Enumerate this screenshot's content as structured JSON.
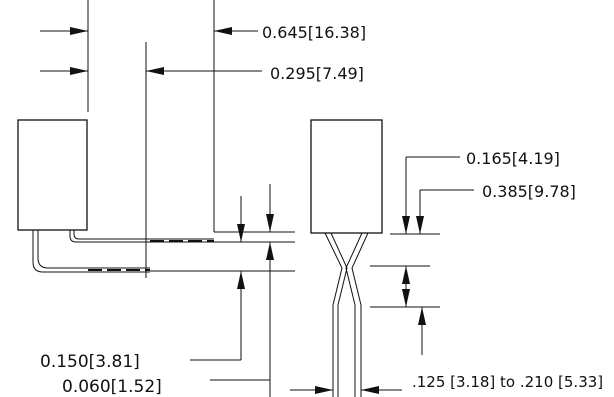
{
  "colors": {
    "line": "#111111",
    "background": "#ffffff"
  },
  "dimensions": {
    "overall_width": "0.645[16.38]",
    "lead_offset": "0.295[7.49]",
    "body_thickness_top": "0.165[4.19]",
    "body_thickness_total": "0.385[9.78]",
    "lead_spacing": "0.150[3.81]",
    "lead_diameter": "0.060[1.52]",
    "lead_pitch_range": ".125 [3.18] to .210 [5.33]"
  }
}
